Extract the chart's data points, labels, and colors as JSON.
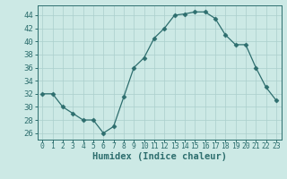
{
  "x": [
    0,
    1,
    2,
    3,
    4,
    5,
    6,
    7,
    8,
    9,
    10,
    11,
    12,
    13,
    14,
    15,
    16,
    17,
    18,
    19,
    20,
    21,
    22,
    23
  ],
  "y": [
    32,
    32,
    30,
    29,
    28,
    28,
    26,
    27,
    31.5,
    36,
    37.5,
    40.5,
    42,
    44,
    44.2,
    44.5,
    44.5,
    43.5,
    41,
    39.5,
    39.5,
    36,
    33,
    31
  ],
  "line_color": "#2d6e6e",
  "marker": "D",
  "marker_size": 2.5,
  "bg_color": "#cce9e5",
  "grid_color": "#aacfcc",
  "xlabel": "Humidex (Indice chaleur)",
  "xlabel_fontsize": 7.5,
  "ylabel_fontsize": 6.5,
  "xtick_fontsize": 5.8,
  "ylim": [
    25,
    45.5
  ],
  "xlim": [
    -0.5,
    23.5
  ],
  "yticks": [
    26,
    28,
    30,
    32,
    34,
    36,
    38,
    40,
    42,
    44
  ],
  "xticks": [
    0,
    1,
    2,
    3,
    4,
    5,
    6,
    7,
    8,
    9,
    10,
    11,
    12,
    13,
    14,
    15,
    16,
    17,
    18,
    19,
    20,
    21,
    22,
    23
  ]
}
